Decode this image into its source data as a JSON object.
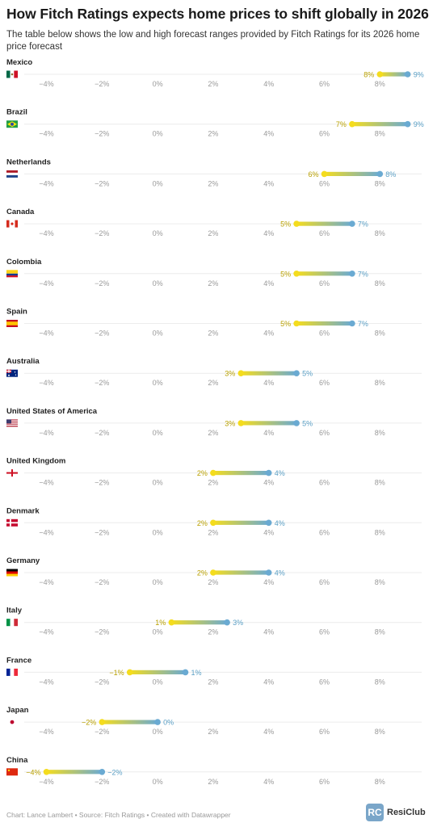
{
  "header": {
    "title": "How Fitch Ratings expects home prices to shift globally in 2026",
    "subtitle": "The table below shows the low and high forecast ranges provided by Fitch Ratings for its 2026 home price forecast"
  },
  "chart_data": {
    "type": "range-dot",
    "title": "How Fitch Ratings expects home prices to shift globally in 2026",
    "subtitle": "The table below shows the low and high forecast ranges provided by Fitch Ratings for its 2026 home price forecast",
    "xlim": [
      -5.5,
      9.5
    ],
    "ticks": [
      -4,
      -2,
      0,
      2,
      4,
      6,
      8
    ],
    "tick_labels": [
      "−4%",
      "−2%",
      "0%",
      "2%",
      "4%",
      "6%",
      "8%"
    ],
    "colors": {
      "low": "#f4dc1e",
      "high": "#6aaad2"
    },
    "rows": [
      {
        "country": "Mexico",
        "flag": "mexico",
        "low": 8,
        "high": 9,
        "low_label": "8%",
        "high_label": "9%"
      },
      {
        "country": "Brazil",
        "flag": "brazil",
        "low": 7,
        "high": 9,
        "low_label": "7%",
        "high_label": "9%"
      },
      {
        "country": "Netherlands",
        "flag": "netherlands",
        "low": 6,
        "high": 8,
        "low_label": "6%",
        "high_label": "8%"
      },
      {
        "country": "Canada",
        "flag": "canada",
        "low": 5,
        "high": 7,
        "low_label": "5%",
        "high_label": "7%"
      },
      {
        "country": "Colombia",
        "flag": "colombia",
        "low": 5,
        "high": 7,
        "low_label": "5%",
        "high_label": "7%"
      },
      {
        "country": "Spain",
        "flag": "spain",
        "low": 5,
        "high": 7,
        "low_label": "5%",
        "high_label": "7%"
      },
      {
        "country": "Australia",
        "flag": "australia",
        "low": 3,
        "high": 5,
        "low_label": "3%",
        "high_label": "5%"
      },
      {
        "country": "United States of America",
        "flag": "usa",
        "low": 3,
        "high": 5,
        "low_label": "3%",
        "high_label": "5%"
      },
      {
        "country": "United Kingdom",
        "flag": "england",
        "low": 2,
        "high": 4,
        "low_label": "2%",
        "high_label": "4%"
      },
      {
        "country": "Denmark",
        "flag": "denmark",
        "low": 2,
        "high": 4,
        "low_label": "2%",
        "high_label": "4%"
      },
      {
        "country": "Germany",
        "flag": "germany",
        "low": 2,
        "high": 4,
        "low_label": "2%",
        "high_label": "4%"
      },
      {
        "country": "Italy",
        "flag": "italy",
        "low": 0.5,
        "high": 2.5,
        "low_label": "1%",
        "high_label": "3%"
      },
      {
        "country": "France",
        "flag": "france",
        "low": -1,
        "high": 1,
        "low_label": "−1%",
        "high_label": "1%"
      },
      {
        "country": "Japan",
        "flag": "japan",
        "low": -2,
        "high": 0,
        "low_label": "−2%",
        "high_label": "0%"
      },
      {
        "country": "China",
        "flag": "china",
        "low": -4,
        "high": -2,
        "low_label": "−4%",
        "high_label": "−2%"
      }
    ]
  },
  "footer": {
    "credit": "Chart: Lance Lambert • Source: Fitch Ratings • Created with Datawrapper",
    "logo_mark": "RC",
    "logo_text": "ResiClub"
  }
}
